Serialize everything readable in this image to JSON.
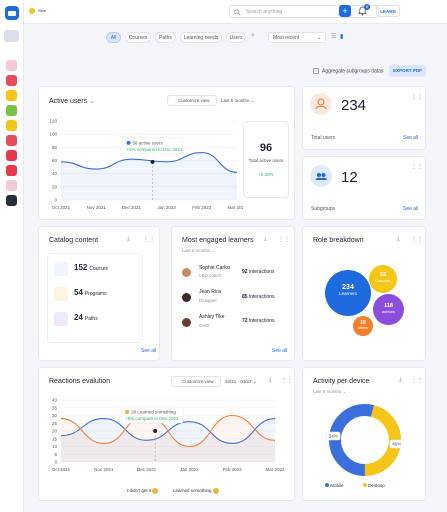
{
  "topbar": {
    "label": "Sies",
    "search_placeholder": "Search anything",
    "notification_count": "6",
    "learn_label": "LEARN"
  },
  "filters": {
    "chips": [
      "All",
      "Courses",
      "Paths",
      "Learning needs",
      "Users"
    ],
    "sort_selected": "Most recent"
  },
  "aggregate_label": "Aggregate subgroups datas",
  "export_label": "EXPORT PDF",
  "active_users": {
    "title": "Active users",
    "customize": "Customize view",
    "period": "Last 6 months",
    "tooltip_title": "58 active users",
    "tooltip_sub": "+5% compared to Dec 2021",
    "total_value": "96",
    "total_label": "Total active users",
    "total_change": "+2.45%"
  },
  "total_users": {
    "value": "234",
    "label": "Total users",
    "see_all": "See all"
  },
  "subgroups": {
    "value": "12",
    "label": "Subgroups",
    "see_all": "See all"
  },
  "catalog": {
    "title": "Catalog content",
    "items": [
      {
        "value": "152",
        "label": "Courses"
      },
      {
        "value": "54",
        "label": "Programs"
      },
      {
        "value": "24",
        "label": "Paths"
      }
    ],
    "see_all": "See all"
  },
  "engaged": {
    "title": "Most engaged learners",
    "period": "Last 6 months",
    "rows": [
      {
        "name": "Sophie Carlos",
        "role": "L&D coach",
        "value": "92",
        "unit": "interactions"
      },
      {
        "name": "Jean Rios",
        "role": "Designer",
        "value": "85",
        "unit": "interactions"
      },
      {
        "name": "Ashley Tike",
        "role": "CMO",
        "value": "72",
        "unit": "interactions"
      }
    ],
    "see_all": "See all"
  },
  "roles": {
    "title": "Role breakdown",
    "bubbles": [
      {
        "value": "234",
        "label": "Learners"
      },
      {
        "value": "53",
        "label": "Coaches"
      },
      {
        "value": "118",
        "label": "admins"
      },
      {
        "value": "18",
        "label": "others"
      }
    ]
  },
  "reactions": {
    "title": "Reactions evalution",
    "customize": "Customize view",
    "period": "10/21 - 03/22",
    "tooltip_title": "20 Learned something",
    "tooltip_sub": "+5% compare to Dec 2021",
    "legend": [
      "I didn't get it",
      "Learned something"
    ]
  },
  "activity": {
    "title": "Activity per device",
    "period": "Last 6 months",
    "legend": [
      "Mobile",
      "Desktop"
    ]
  },
  "colors": {
    "primary": "#1e6bdf",
    "series_blue": "#3b6fd9",
    "series_orange": "#f0813a",
    "yellow": "#f5c518",
    "purple": "#8b4ddb",
    "orange": "#f27f2e",
    "green": "#2fb36b"
  },
  "chart_data": [
    {
      "type": "line",
      "x": [
        "Oct 2021",
        "Nov 2021",
        "Dec 2021",
        "Jan 2022",
        "Feb 2022",
        "Mar 2022"
      ],
      "series": [
        {
          "values": [
            58,
            47,
            62,
            58,
            72,
            42
          ]
        }
      ],
      "ylim": [
        0,
        120
      ],
      "yticks": [
        0,
        20,
        40,
        60,
        80,
        100,
        120
      ]
    },
    {
      "type": "line",
      "x": [
        "Oct 2021",
        "Nov 2021",
        "Dec 2021",
        "Jan 2022",
        "Feb 2022",
        "Mar 2022"
      ],
      "series": [
        {
          "name": "I didn't get it",
          "values": [
            17,
            28,
            14,
            26,
            12,
            28
          ]
        },
        {
          "name": "Learned something",
          "values": [
            28,
            12,
            30,
            10,
            30,
            14
          ]
        }
      ],
      "ylim": [
        0,
        40
      ],
      "yticks": [
        0,
        5,
        10,
        15,
        20,
        25,
        30,
        35,
        40
      ]
    },
    {
      "type": "pie",
      "categories": [
        "Mobile",
        "Desktop"
      ],
      "values": [
        54,
        46
      ]
    }
  ]
}
